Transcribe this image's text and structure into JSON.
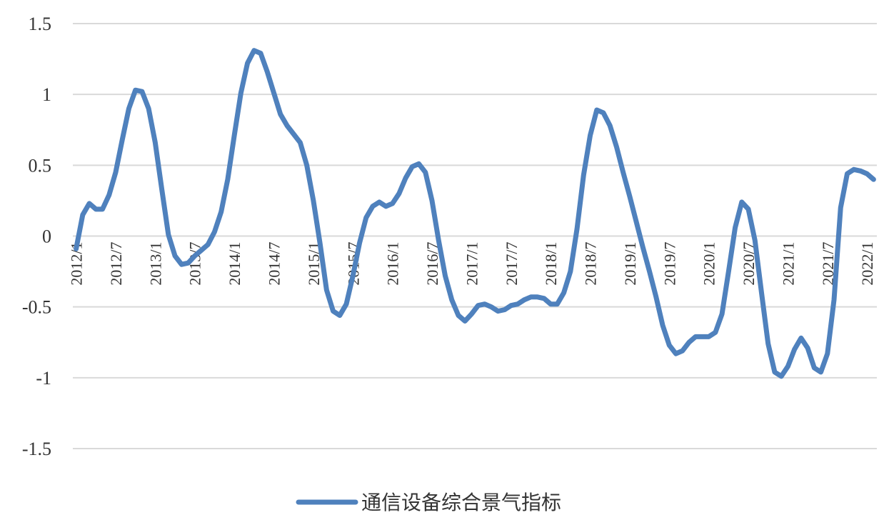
{
  "chart_data": {
    "type": "line",
    "categories": [
      "2012/1",
      null,
      null,
      null,
      null,
      null,
      "2012/7",
      null,
      null,
      null,
      null,
      null,
      "2013/1",
      null,
      null,
      null,
      null,
      null,
      "2013/7",
      null,
      null,
      null,
      null,
      null,
      "2014/1",
      null,
      null,
      null,
      null,
      null,
      "2014/7",
      null,
      null,
      null,
      null,
      null,
      "2015/1",
      null,
      null,
      null,
      null,
      null,
      "2015/7",
      null,
      null,
      null,
      null,
      null,
      "2016/1",
      null,
      null,
      null,
      null,
      null,
      "2016/7",
      null,
      null,
      null,
      null,
      null,
      "2017/1",
      null,
      null,
      null,
      null,
      null,
      "2017/7",
      null,
      null,
      null,
      null,
      null,
      "2018/1",
      null,
      null,
      null,
      null,
      null,
      "2018/7",
      null,
      null,
      null,
      null,
      null,
      "2019/1",
      null,
      null,
      null,
      null,
      null,
      "2019/7",
      null,
      null,
      null,
      null,
      null,
      "2020/1",
      null,
      null,
      null,
      null,
      null,
      "2020/7",
      null,
      null,
      null,
      null,
      null,
      "2021/1",
      null,
      null,
      null,
      null,
      null,
      "2021/7",
      null,
      null,
      null,
      null,
      null,
      "2022/1",
      null
    ],
    "series": [
      {
        "name": "通信设备综合景气指标",
        "color": "#4f81bd",
        "values": [
          -0.09,
          0.15,
          0.23,
          0.19,
          0.19,
          0.29,
          0.45,
          0.68,
          0.9,
          1.03,
          1.02,
          0.9,
          0.66,
          0.33,
          0.01,
          -0.14,
          -0.2,
          -0.19,
          -0.14,
          -0.1,
          -0.06,
          0.03,
          0.17,
          0.4,
          0.71,
          1.01,
          1.22,
          1.31,
          1.29,
          1.16,
          1.01,
          0.86,
          0.78,
          0.72,
          0.66,
          0.5,
          0.25,
          -0.05,
          -0.38,
          -0.53,
          -0.56,
          -0.48,
          -0.28,
          -0.05,
          0.13,
          0.21,
          0.24,
          0.21,
          0.23,
          0.3,
          0.41,
          0.49,
          0.51,
          0.45,
          0.25,
          -0.03,
          -0.28,
          -0.45,
          -0.56,
          -0.6,
          -0.55,
          -0.49,
          -0.48,
          -0.5,
          -0.53,
          -0.52,
          -0.49,
          -0.48,
          -0.45,
          -0.43,
          -0.43,
          -0.44,
          -0.48,
          -0.48,
          -0.4,
          -0.25,
          0.05,
          0.43,
          0.71,
          0.89,
          0.87,
          0.78,
          0.63,
          0.45,
          0.28,
          0.1,
          -0.08,
          -0.25,
          -0.43,
          -0.63,
          -0.77,
          -0.83,
          -0.81,
          -0.75,
          -0.71,
          -0.71,
          -0.71,
          -0.68,
          -0.55,
          -0.25,
          0.06,
          0.24,
          0.19,
          -0.03,
          -0.4,
          -0.76,
          -0.96,
          -0.99,
          -0.92,
          -0.8,
          -0.72,
          -0.79,
          -0.93,
          -0.96,
          -0.83,
          -0.45,
          0.2,
          0.44,
          0.47,
          0.46,
          0.44,
          0.4
        ]
      }
    ],
    "ylim": [
      -1.5,
      1.5
    ],
    "yticks": [
      -1.5,
      -1,
      -0.5,
      0,
      0.5,
      1,
      1.5
    ],
    "grid": true,
    "legend": "bottom"
  }
}
